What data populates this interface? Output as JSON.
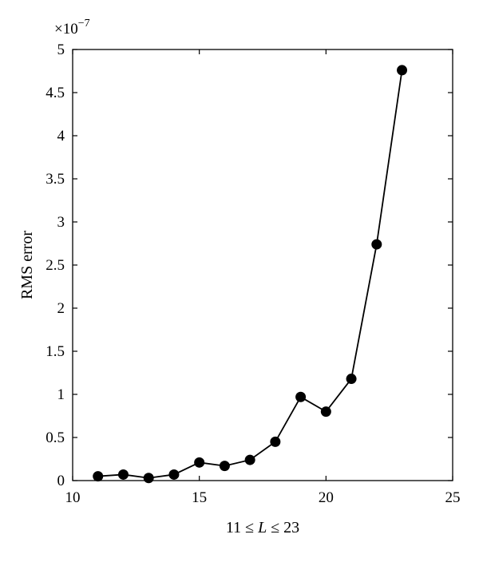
{
  "chart_data": {
    "type": "line",
    "title": "",
    "xlabel_prefix": "11 ≤ ",
    "xlabel_var": "L",
    "xlabel_suffix": " ≤ 23",
    "ylabel": "RMS error",
    "y_exponent_base": "×10",
    "y_exponent_power": "−7",
    "xlim": [
      10,
      25
    ],
    "ylim": [
      0,
      5
    ],
    "xticks": [
      10,
      15,
      20,
      25
    ],
    "yticks": [
      0,
      0.5,
      1,
      1.5,
      2,
      2.5,
      3,
      3.5,
      4,
      4.5,
      5
    ],
    "grid": false,
    "series": [
      {
        "x": [
          11,
          12,
          13,
          14,
          15,
          16,
          17,
          18,
          19,
          20,
          21,
          22,
          23
        ],
        "values": [
          0.05,
          0.07,
          0.03,
          0.07,
          0.21,
          0.17,
          0.24,
          0.45,
          0.97,
          0.8,
          1.18,
          2.74,
          4.76
        ],
        "color": "#000000",
        "marker": "circle"
      }
    ]
  }
}
